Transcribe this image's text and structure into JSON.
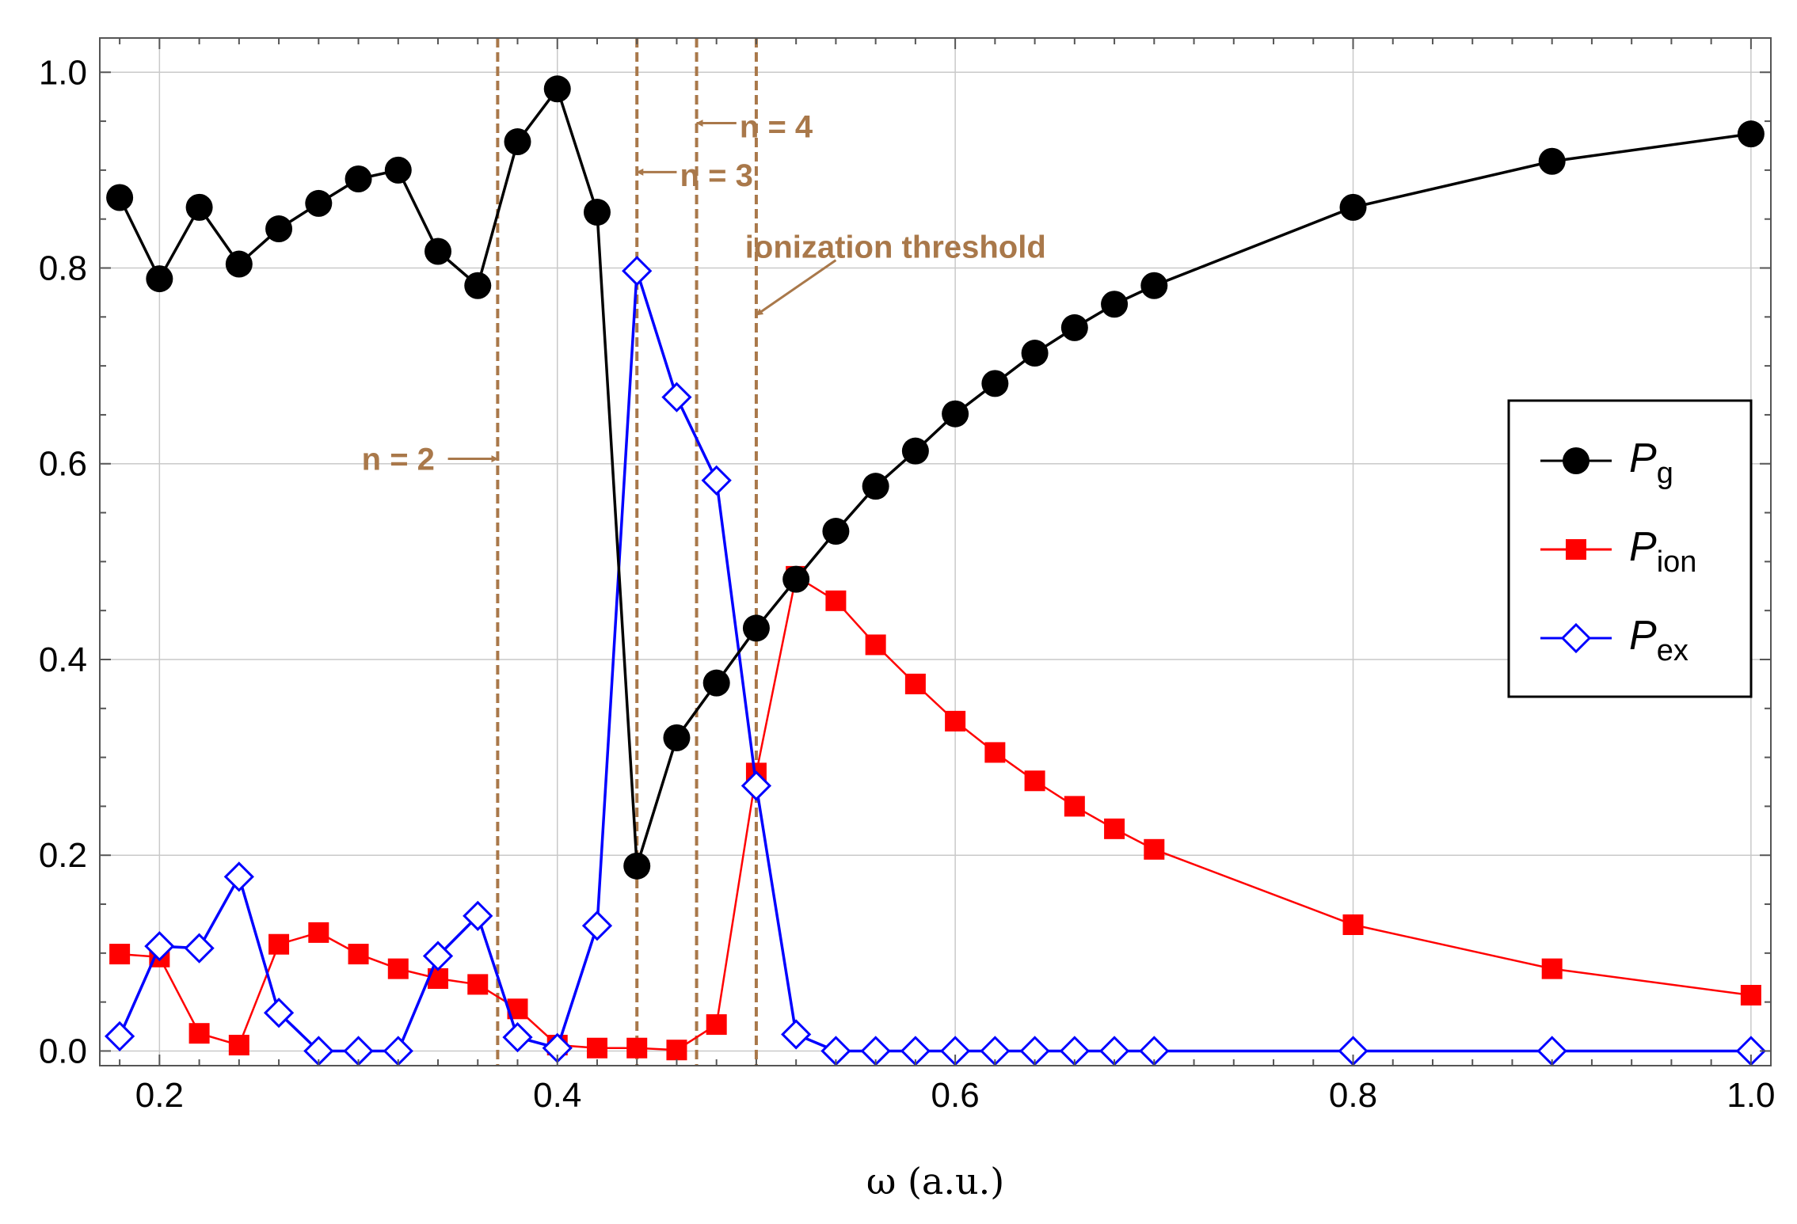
{
  "chart_data": {
    "type": "line",
    "xlabel": "ω  (a.u.)",
    "ylabel": "",
    "xlim": [
      0.17,
      1.01
    ],
    "ylim": [
      -0.015,
      1.035
    ],
    "xticks": [
      "0.2",
      "0.4",
      "0.6",
      "0.8",
      "1.0"
    ],
    "xtick_values": [
      0.2,
      0.4,
      0.6,
      0.8,
      1.0
    ],
    "yticks": [
      "0.0",
      "0.2",
      "0.4",
      "0.6",
      "0.8",
      "1.0"
    ],
    "ytick_values": [
      0.0,
      0.2,
      0.4,
      0.6,
      0.8,
      1.0
    ],
    "grid": true,
    "legend_position": "right",
    "series": [
      {
        "name": "P_g",
        "legend_main": "P",
        "legend_sub": "g",
        "color": "#000000",
        "marker": "filled-circle",
        "x": [
          0.18,
          0.2,
          0.22,
          0.24,
          0.26,
          0.28,
          0.3,
          0.32,
          0.34,
          0.36,
          0.38,
          0.4,
          0.42,
          0.44,
          0.46,
          0.48,
          0.5,
          0.52,
          0.54,
          0.56,
          0.58,
          0.6,
          0.62,
          0.64,
          0.66,
          0.68,
          0.7,
          0.8,
          0.9,
          1.0
        ],
        "y": [
          0.872,
          0.789,
          0.862,
          0.804,
          0.84,
          0.866,
          0.891,
          0.9,
          0.817,
          0.782,
          0.929,
          0.983,
          0.857,
          0.189,
          0.32,
          0.376,
          0.432,
          0.482,
          0.531,
          0.577,
          0.613,
          0.651,
          0.682,
          0.713,
          0.739,
          0.763,
          0.782,
          0.862,
          0.909,
          0.937
        ]
      },
      {
        "name": "P_ion",
        "legend_main": "P",
        "legend_sub": "ion",
        "color": "#ff0000",
        "marker": "filled-square",
        "x": [
          0.18,
          0.2,
          0.22,
          0.24,
          0.26,
          0.28,
          0.3,
          0.32,
          0.34,
          0.36,
          0.38,
          0.4,
          0.42,
          0.44,
          0.46,
          0.48,
          0.5,
          0.52,
          0.54,
          0.56,
          0.58,
          0.6,
          0.62,
          0.64,
          0.66,
          0.68,
          0.7,
          0.8,
          0.9,
          1.0
        ],
        "y": [
          0.099,
          0.096,
          0.018,
          0.006,
          0.109,
          0.121,
          0.099,
          0.084,
          0.074,
          0.068,
          0.043,
          0.006,
          0.003,
          0.003,
          0.001,
          0.027,
          0.284,
          0.485,
          0.46,
          0.415,
          0.375,
          0.337,
          0.305,
          0.276,
          0.25,
          0.227,
          0.206,
          0.129,
          0.084,
          0.057
        ]
      },
      {
        "name": "P_ex",
        "legend_main": "P",
        "legend_sub": "ex",
        "color": "#0000ff",
        "marker": "open-diamond",
        "x": [
          0.18,
          0.2,
          0.22,
          0.24,
          0.26,
          0.28,
          0.3,
          0.32,
          0.34,
          0.36,
          0.38,
          0.4,
          0.42,
          0.44,
          0.46,
          0.48,
          0.5,
          0.52,
          0.54,
          0.56,
          0.58,
          0.6,
          0.62,
          0.64,
          0.66,
          0.68,
          0.7,
          0.8,
          0.9,
          1.0
        ],
        "y": [
          0.015,
          0.107,
          0.105,
          0.178,
          0.039,
          0.0,
          0.0,
          0.0,
          0.097,
          0.138,
          0.014,
          0.003,
          0.128,
          0.797,
          0.668,
          0.583,
          0.271,
          0.017,
          0.0,
          0.0,
          0.0,
          0.0,
          0.0,
          0.0,
          0.0,
          0.0,
          0.0,
          0.0,
          0.0,
          0.0
        ]
      }
    ],
    "vlines": [
      0.37,
      0.44,
      0.47,
      0.5
    ],
    "vline_color": "#a9784a",
    "annotations": [
      {
        "text": "n = 2",
        "label_x": 0.32,
        "label_y": 0.605,
        "arrow_from": [
          0.345,
          0.605
        ],
        "arrow_to": [
          0.37,
          0.605
        ]
      },
      {
        "text": "n = 3",
        "label_x": 0.48,
        "label_y": 0.895,
        "arrow_from": [
          0.46,
          0.898
        ],
        "arrow_to": [
          0.44,
          0.898
        ]
      },
      {
        "text": "n = 4",
        "label_x": 0.51,
        "label_y": 0.945,
        "arrow_from": [
          0.49,
          0.948
        ],
        "arrow_to": [
          0.47,
          0.948
        ]
      },
      {
        "text": "ionization  threshold",
        "label_x": 0.57,
        "label_y": 0.822,
        "arrow_from": [
          0.54,
          0.808
        ],
        "arrow_to": [
          0.5,
          0.752
        ]
      }
    ]
  }
}
